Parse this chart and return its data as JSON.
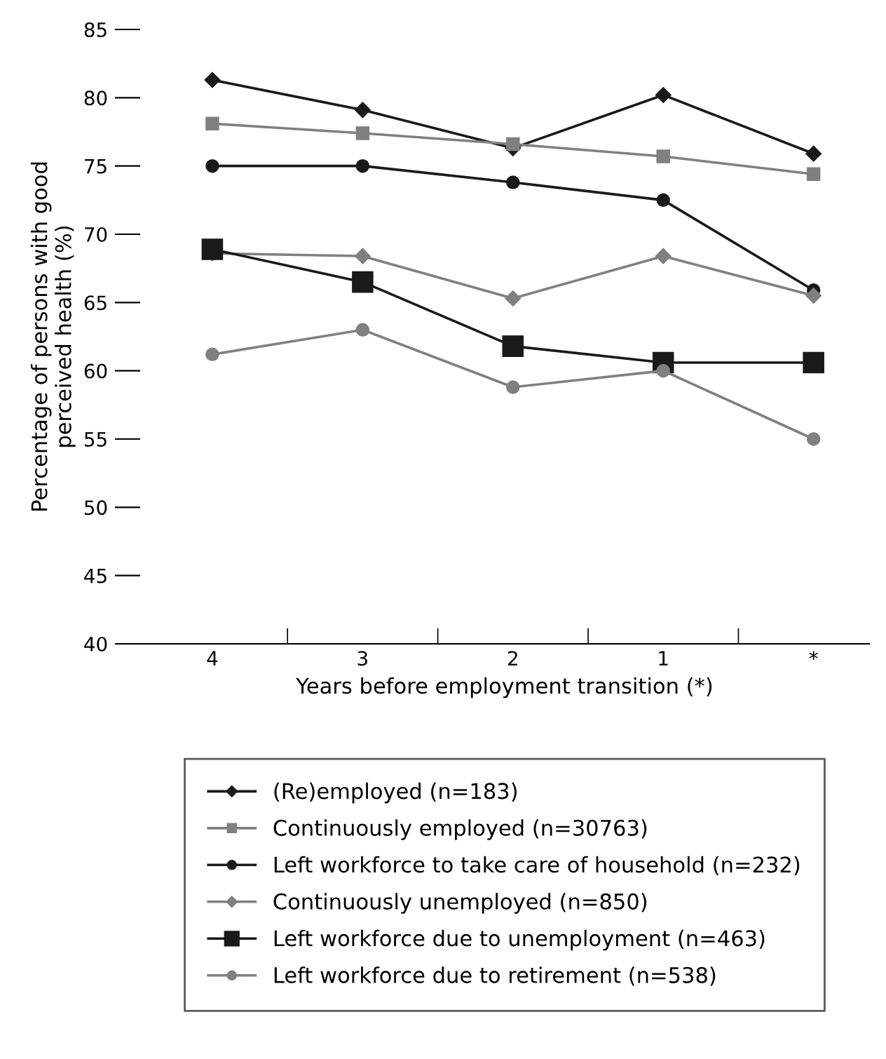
{
  "chart_data": {
    "type": "line",
    "xlabel": "Years before employment transition (*)",
    "ylabel": "Percentage of persons with good\nperceived health (%)",
    "categories": [
      "4",
      "3",
      "2",
      "1",
      "*"
    ],
    "ylim": [
      40,
      85
    ],
    "yticks": [
      40,
      45,
      50,
      55,
      60,
      65,
      70,
      75,
      80,
      85
    ],
    "grid": false,
    "legend": "bottom",
    "line_style": "solid",
    "series": [
      {
        "name": "(Re)employed (n=183)",
        "color": "#1a1a1a",
        "marker": "diamond",
        "values": [
          81.3,
          79.1,
          76.3,
          80.2,
          75.9
        ]
      },
      {
        "name": "Continuously employed (n=30763)",
        "color": "#808080",
        "marker": "square",
        "values": [
          78.1,
          77.4,
          76.6,
          75.7,
          74.4
        ]
      },
      {
        "name": "Left workforce to take care of household (n=232)",
        "color": "#1a1a1a",
        "marker": "circle",
        "values": [
          75.0,
          75.0,
          73.8,
          72.5,
          65.9
        ]
      },
      {
        "name": "Continuously unemployed (n=850)",
        "color": "#808080",
        "marker": "diamond",
        "values": [
          68.6,
          68.4,
          65.3,
          68.4,
          65.5
        ]
      },
      {
        "name": "Left workforce due to unemployment (n=463)",
        "color": "#1a1a1a",
        "marker": "square",
        "values": [
          68.9,
          66.5,
          61.8,
          60.6,
          60.6
        ]
      },
      {
        "name": "Left workforce due to retirement (n=538)",
        "color": "#808080",
        "marker": "circle",
        "values": [
          61.2,
          63.0,
          58.8,
          60.0,
          55.0
        ]
      }
    ]
  }
}
